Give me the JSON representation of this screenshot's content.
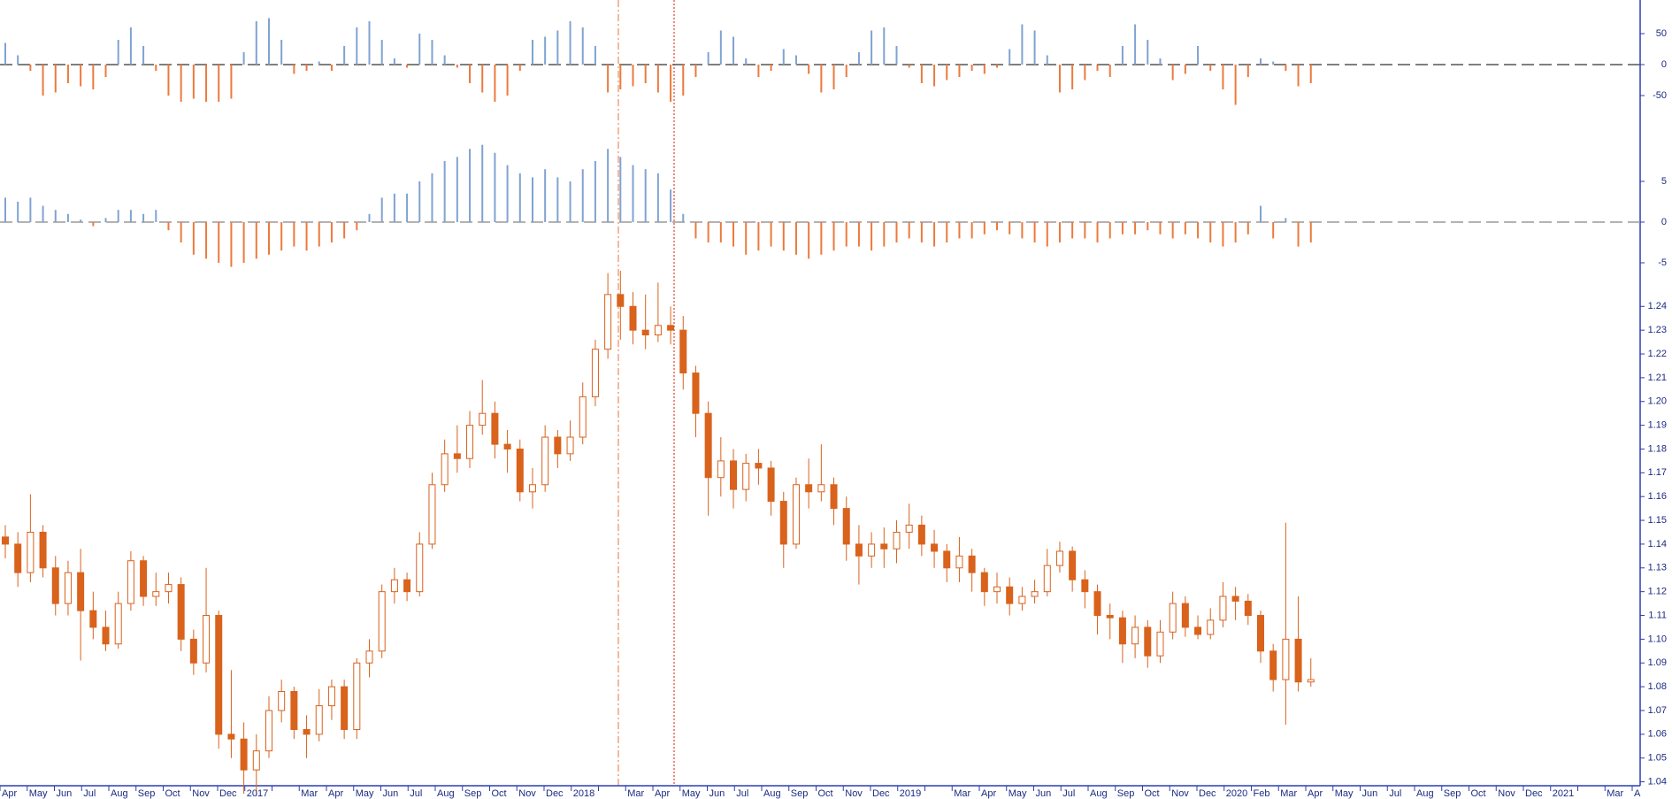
{
  "chart_data": [
    {
      "type": "bar",
      "ylim": [
        -100,
        100
      ],
      "yticks": [
        50,
        0,
        -50
      ],
      "zero_line": true,
      "color_positive": "#7fa3d1",
      "color_negative": "#ec7a3c",
      "values": [
        35,
        15,
        -10,
        -50,
        -45,
        -30,
        -35,
        -40,
        -20,
        40,
        60,
        30,
        -10,
        -50,
        -60,
        -55,
        -60,
        -60,
        -55,
        20,
        70,
        75,
        40,
        -15,
        -10,
        5,
        -10,
        30,
        60,
        70,
        40,
        10,
        -5,
        50,
        40,
        15,
        -5,
        -30,
        -45,
        -60,
        -50,
        -10,
        40,
        45,
        55,
        70,
        60,
        30,
        -45,
        -40,
        -35,
        -30,
        -45,
        -60,
        -50,
        -20,
        20,
        55,
        45,
        10,
        -20,
        -10,
        25,
        15,
        -15,
        -45,
        -40,
        -20,
        20,
        55,
        60,
        30,
        -5,
        -30,
        -35,
        -25,
        -20,
        -10,
        -15,
        -5,
        25,
        65,
        55,
        15,
        -45,
        -40,
        -25,
        -10,
        -20,
        30,
        65,
        40,
        10,
        -25,
        -15,
        30,
        -10,
        -40,
        -65,
        -20,
        10,
        5,
        -10,
        -35,
        -30
      ]
    },
    {
      "type": "bar",
      "ylim": [
        -10,
        10
      ],
      "yticks": [
        5,
        0,
        -5
      ],
      "zero_line": true,
      "color_positive": "#7fa3d1",
      "color_negative": "#ec7a3c",
      "values": [
        3,
        2.5,
        3,
        2,
        1.5,
        1,
        0.3,
        -0.5,
        0.5,
        1.5,
        1.5,
        1,
        1.5,
        -1,
        -2.5,
        -4,
        -4.5,
        -5,
        -5.5,
        -5,
        -4.5,
        -4,
        -3.5,
        -3,
        -3.5,
        -3,
        -2.5,
        -2,
        -1,
        1,
        3,
        3.5,
        3.5,
        5,
        6,
        7.5,
        8,
        9,
        9.5,
        8.5,
        7,
        6,
        5.5,
        6.5,
        5.5,
        5,
        6.5,
        7.5,
        9,
        8,
        7,
        6.5,
        6,
        4,
        1,
        -2,
        -2.5,
        -2.5,
        -3,
        -4,
        -3.5,
        -3,
        -3.5,
        -4,
        -4.5,
        -4,
        -3.5,
        -3,
        -3,
        -3.5,
        -3,
        -2.5,
        -2,
        -2.5,
        -3,
        -2.5,
        -2,
        -2,
        -1.5,
        -1,
        -1.5,
        -2,
        -2.5,
        -3,
        -2.5,
        -2,
        -2,
        -2.5,
        -2,
        -1.5,
        -1.5,
        -1,
        -1.5,
        -2,
        -1.5,
        -2,
        -2.5,
        -3,
        -2.5,
        -1.5,
        2,
        -2,
        0.5,
        -3,
        -2.5
      ]
    },
    {
      "type": "candlestick",
      "ylim": [
        1.035,
        1.255
      ],
      "color": "#d9621c",
      "yticks": [
        1.04,
        1.05,
        1.06,
        1.07,
        1.08,
        1.09,
        {
          "value": 1.1,
          "label": "1.10"
        },
        1.11,
        1.12,
        1.13,
        1.14,
        1.15,
        1.16,
        1.17,
        1.18,
        1.19,
        {
          "value": 1.2,
          "label": "1.20"
        },
        1.21,
        1.22,
        1.23,
        1.24
      ],
      "month_labels": [
        "Apr",
        "May",
        "Jun",
        "Jul",
        "Aug",
        "Sep",
        "Oct",
        "Nov",
        "Dec",
        "2017",
        null,
        "Mar",
        "Apr",
        "May",
        "Jun",
        "Jul",
        "Aug",
        "Sep",
        "Oct",
        "Nov",
        "Dec",
        "2018",
        null,
        "Mar",
        "Apr",
        "May",
        "Jun",
        "Jul",
        "Aug",
        "Sep",
        "Oct",
        "Nov",
        "Dec",
        "2019",
        null,
        "Mar",
        "Apr",
        "May",
        "Jun",
        "Jul",
        "Aug",
        "Sep",
        "Oct",
        "Nov",
        "Dec",
        "2020",
        "Feb",
        "Mar",
        "Apr",
        "May",
        "Jun",
        "Jul",
        "Aug",
        "Sep",
        "Oct",
        "Nov",
        "Dec",
        "2021",
        null,
        "Mar",
        "A"
      ],
      "open": [
        1.143,
        1.14,
        1.128,
        1.145,
        1.13,
        1.115,
        1.128,
        1.112,
        1.105,
        1.098,
        1.115,
        1.133,
        1.118,
        1.12,
        1.123,
        1.1,
        1.09,
        1.11,
        1.06,
        1.058,
        1.045,
        1.053,
        1.07,
        1.078,
        1.062,
        1.06,
        1.072,
        1.08,
        1.062,
        1.09,
        1.095,
        1.12,
        1.125,
        1.12,
        1.14,
        1.165,
        1.178,
        1.176,
        1.19,
        1.195,
        1.182,
        1.18,
        1.162,
        1.165,
        1.185,
        1.178,
        1.185,
        1.202,
        1.222,
        1.245,
        1.24,
        1.23,
        1.228,
        1.232,
        1.23,
        1.212,
        1.195,
        1.168,
        1.175,
        1.163,
        1.174,
        1.172,
        1.158,
        1.14,
        1.165,
        1.162,
        1.165,
        1.155,
        1.14,
        1.135,
        1.14,
        1.138,
        1.145,
        1.148,
        1.14,
        1.137,
        1.13,
        1.135,
        1.128,
        1.12,
        1.122,
        1.115,
        1.118,
        1.12,
        1.131,
        1.137,
        1.125,
        1.12,
        1.11,
        1.109,
        1.098,
        1.105,
        1.093,
        1.103,
        1.115,
        1.105,
        1.102,
        1.108,
        1.118,
        1.116,
        1.11,
        1.095,
        1.083,
        1.1,
        1.082
      ],
      "high": [
        1.148,
        1.145,
        1.161,
        1.148,
        1.135,
        1.133,
        1.138,
        1.12,
        1.112,
        1.12,
        1.137,
        1.135,
        1.128,
        1.128,
        1.126,
        1.104,
        1.13,
        1.112,
        1.087,
        1.065,
        1.06,
        1.076,
        1.083,
        1.08,
        1.068,
        1.079,
        1.083,
        1.083,
        1.092,
        1.1,
        1.123,
        1.13,
        1.128,
        1.145,
        1.17,
        1.184,
        1.19,
        1.196,
        1.209,
        1.2,
        1.188,
        1.184,
        1.172,
        1.19,
        1.188,
        1.192,
        1.208,
        1.226,
        1.254,
        1.255,
        1.246,
        1.245,
        1.25,
        1.24,
        1.236,
        1.215,
        1.2,
        1.185,
        1.18,
        1.178,
        1.18,
        1.175,
        1.162,
        1.168,
        1.176,
        1.182,
        1.168,
        1.16,
        1.148,
        1.145,
        1.147,
        1.15,
        1.157,
        1.152,
        1.146,
        1.14,
        1.143,
        1.138,
        1.13,
        1.128,
        1.126,
        1.122,
        1.125,
        1.138,
        1.141,
        1.139,
        1.129,
        1.123,
        1.115,
        1.112,
        1.11,
        1.108,
        1.108,
        1.12,
        1.118,
        1.11,
        1.113,
        1.124,
        1.122,
        1.119,
        1.112,
        1.098,
        1.149,
        1.118,
        1.092
      ],
      "low": [
        1.134,
        1.122,
        1.124,
        1.126,
        1.11,
        1.11,
        1.091,
        1.1,
        1.095,
        1.096,
        1.112,
        1.114,
        1.114,
        1.115,
        1.095,
        1.085,
        1.086,
        1.054,
        1.05,
        1.035,
        1.034,
        1.05,
        1.065,
        1.058,
        1.05,
        1.057,
        1.066,
        1.058,
        1.058,
        1.084,
        1.092,
        1.115,
        1.116,
        1.118,
        1.138,
        1.162,
        1.17,
        1.172,
        1.186,
        1.176,
        1.17,
        1.158,
        1.155,
        1.162,
        1.172,
        1.175,
        1.182,
        1.198,
        1.218,
        1.226,
        1.224,
        1.222,
        1.225,
        1.224,
        1.205,
        1.185,
        1.152,
        1.16,
        1.155,
        1.158,
        1.165,
        1.152,
        1.13,
        1.138,
        1.155,
        1.158,
        1.148,
        1.133,
        1.123,
        1.13,
        1.13,
        1.132,
        1.138,
        1.135,
        1.13,
        1.124,
        1.124,
        1.12,
        1.114,
        1.115,
        1.11,
        1.112,
        1.115,
        1.118,
        1.128,
        1.12,
        1.113,
        1.102,
        1.1,
        1.09,
        1.092,
        1.088,
        1.09,
        1.1,
        1.101,
        1.1,
        1.1,
        1.105,
        1.108,
        1.106,
        1.09,
        1.078,
        1.064,
        1.078,
        1.08
      ],
      "close": [
        1.14,
        1.128,
        1.145,
        1.13,
        1.115,
        1.128,
        1.112,
        1.105,
        1.098,
        1.115,
        1.133,
        1.118,
        1.12,
        1.123,
        1.1,
        1.09,
        1.11,
        1.06,
        1.058,
        1.045,
        1.053,
        1.07,
        1.078,
        1.062,
        1.06,
        1.072,
        1.08,
        1.062,
        1.09,
        1.095,
        1.12,
        1.125,
        1.12,
        1.14,
        1.165,
        1.178,
        1.176,
        1.19,
        1.195,
        1.182,
        1.18,
        1.162,
        1.165,
        1.185,
        1.178,
        1.185,
        1.202,
        1.222,
        1.245,
        1.24,
        1.23,
        1.228,
        1.232,
        1.23,
        1.212,
        1.195,
        1.168,
        1.175,
        1.163,
        1.174,
        1.172,
        1.158,
        1.14,
        1.165,
        1.162,
        1.165,
        1.155,
        1.14,
        1.135,
        1.14,
        1.138,
        1.145,
        1.148,
        1.14,
        1.137,
        1.13,
        1.135,
        1.128,
        1.12,
        1.122,
        1.115,
        1.118,
        1.12,
        1.131,
        1.137,
        1.125,
        1.12,
        1.11,
        1.109,
        1.098,
        1.105,
        1.093,
        1.103,
        1.115,
        1.105,
        1.102,
        1.108,
        1.118,
        1.116,
        1.11,
        1.095,
        1.083,
        1.1,
        1.082,
        1.083
      ]
    }
  ]
}
